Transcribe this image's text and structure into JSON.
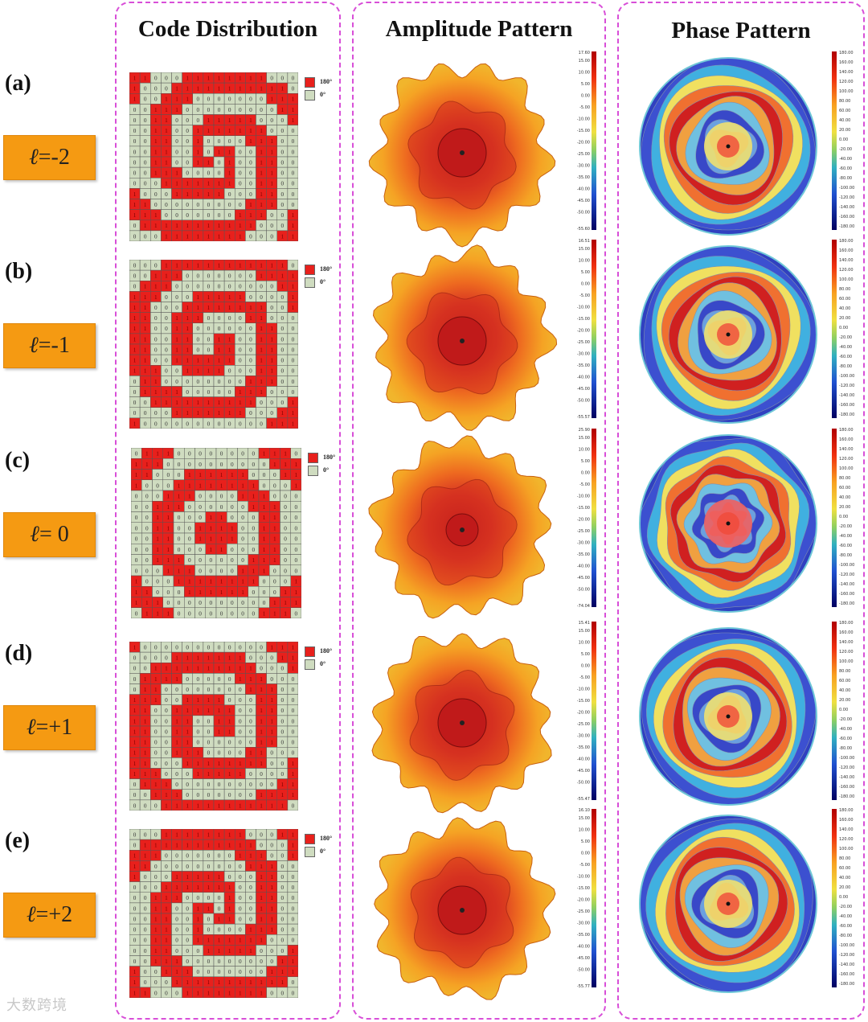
{
  "columns": {
    "code": "Code Distribution",
    "amplitude": "Amplitude Pattern",
    "phase": "Phase Pattern"
  },
  "legend": {
    "one": "180°",
    "zero": "0°"
  },
  "rows": [
    {
      "label": "(a)",
      "mode": "=-2",
      "amp_top": "17.60",
      "amp_bottom": "-55.60"
    },
    {
      "label": "(b)",
      "mode": "=-1",
      "amp_top": "16.51",
      "amp_bottom": "-55.57"
    },
    {
      "label": "(c)",
      "mode": "= 0",
      "amp_top": "25.90",
      "amp_bottom": "-74.04"
    },
    {
      "label": "(d)",
      "mode": "=+1",
      "amp_top": "15.41",
      "amp_bottom": "-55.47"
    },
    {
      "label": "(e)",
      "mode": "=+2",
      "amp_top": "16.10",
      "amp_bottom": "-55.77"
    }
  ],
  "amp_ticks": [
    "15.00",
    "10.00",
    "5.00",
    "0.00",
    "-5.00",
    "-10.00",
    "-15.00",
    "-20.00",
    "-25.00",
    "-30.00",
    "-35.00",
    "-40.00",
    "-45.00",
    "-50.00"
  ],
  "phase_ticks": [
    "180.00",
    "160.00",
    "140.00",
    "120.00",
    "100.00",
    "80.00",
    "60.00",
    "40.00",
    "20.00",
    "0.00",
    "-20.00",
    "-40.00",
    "-60.00",
    "-80.00",
    "-100.00",
    "-120.00",
    "-140.00",
    "-160.00",
    "-180.00"
  ],
  "ell_symbol": "ℓ",
  "watermark": "大数跨境",
  "colors": {
    "red": "#e8201c",
    "green": "#cfdcc0",
    "badge": "#f59a12",
    "panel_border": "#d84fd8"
  }
}
